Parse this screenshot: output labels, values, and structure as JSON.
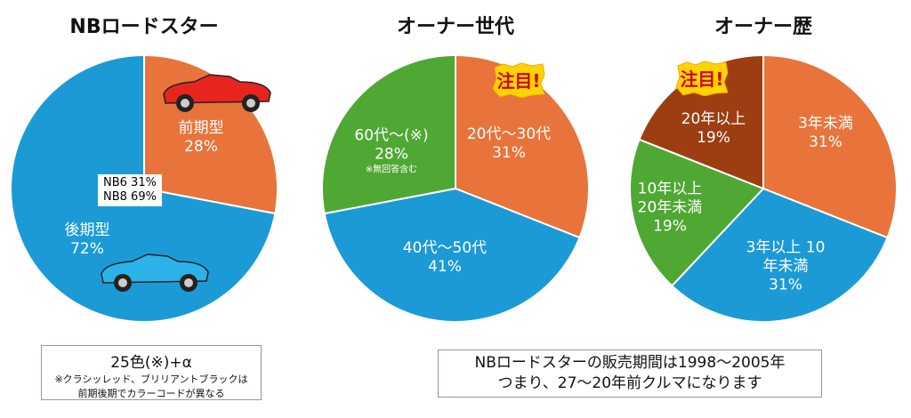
{
  "chart_data": [
    {
      "type": "pie",
      "title": "NBロードスター",
      "slices": [
        {
          "label": "前期型",
          "value": 28,
          "color": "#E8743B"
        },
        {
          "label": "後期型",
          "value": 72,
          "color": "#1B9AD6"
        }
      ],
      "inner_note": [
        "NB6 31%",
        "NB8 69%"
      ]
    },
    {
      "type": "pie",
      "title": "オーナー世代",
      "slices": [
        {
          "label": "20代～30代",
          "value": 31,
          "color": "#E8743B"
        },
        {
          "label": "40代～50代",
          "value": 41,
          "color": "#1B9AD6"
        },
        {
          "label": "60代～(※)",
          "value": 28,
          "color": "#4EA833",
          "note": "※無回答含む"
        }
      ],
      "badge": "注目!"
    },
    {
      "type": "pie",
      "title": "オーナー歴",
      "slices": [
        {
          "label": "3年未満",
          "value": 31,
          "color": "#E8743B"
        },
        {
          "label": "3年以上 10年未満",
          "value": 31,
          "color": "#1B9AD6"
        },
        {
          "label": "10年以上 20年未満",
          "value": 19,
          "color": "#4EA833"
        },
        {
          "label": "20年以上",
          "value": 19,
          "color": "#9C3E12"
        }
      ],
      "badge": "注目!"
    }
  ],
  "notes": {
    "colors_main": "25色(※)+α",
    "colors_sub1": "※クラシッレッド、ブリリアントブラックは",
    "colors_sub2": "前期後期でカラーコードが異なる",
    "period1": "NBロードスターの販売期間は1998～2005年",
    "period2": "つまり、27～20年前クルマになります"
  }
}
